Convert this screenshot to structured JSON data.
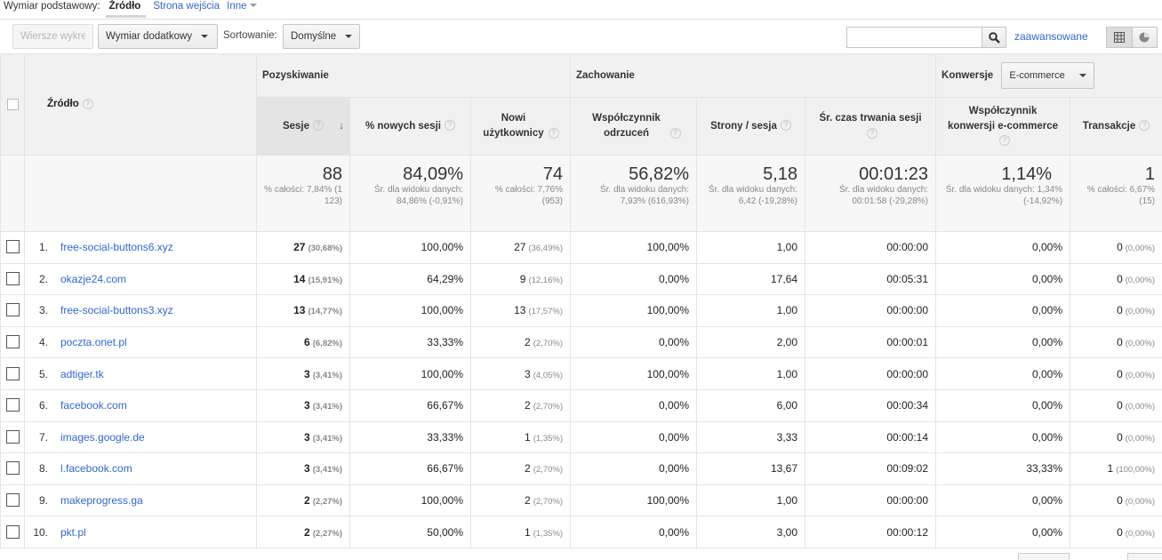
{
  "dimension_bar": {
    "label": "Wymiar podstawowy:",
    "active": "Źródło",
    "links": [
      "Strona wejścia",
      "Inne"
    ]
  },
  "toolbar": {
    "plot_rows": "Wiersze wykresu",
    "secondary_dimension": "Wymiar dodatkowy",
    "sort_label": "Sortowanie:",
    "sort_value": "Domyślne",
    "search_value": "",
    "advanced": "zaawansowane"
  },
  "table": {
    "source_header": "Źródło",
    "groups": {
      "acquisition": "Pozyskiwanie",
      "behavior": "Zachowanie",
      "conversions": "Konwersje",
      "conversions_select": "E-commerce"
    },
    "columns": {
      "sessions": "Sesje",
      "new_sessions": "% nowych sesji",
      "new_users": "Nowi użytkownicy",
      "bounce": "Współczynnik odrzuceń",
      "pages": "Strony / sesja",
      "duration": "Śr. czas trwania sesji",
      "conv_rate": "Współczynnik konwersji e-commerce",
      "transactions": "Transakcje"
    },
    "totals": {
      "sessions": {
        "value": "88",
        "sub": "% całości: 7,84% (1 123)"
      },
      "new_sessions": {
        "value": "84,09%",
        "sub": "Śr. dla widoku danych: 84,86% (-0,91%)"
      },
      "new_users": {
        "value": "74",
        "sub": "% całości: 7,76% (953)"
      },
      "bounce": {
        "value": "56,82%",
        "sub": "Śr. dla widoku danych: 7,93% (616,93%)"
      },
      "pages": {
        "value": "5,18",
        "sub": "Śr. dla widoku danych: 6,42 (-19,28%)"
      },
      "duration": {
        "value": "00:01:23",
        "sub": "Śr. dla widoku danych: 00:01:58 (-29,28%)"
      },
      "conv_rate": {
        "value": "1,14%",
        "sub": "Śr. dla widoku danych: 1,34% (-14,92%)"
      },
      "transactions": {
        "value": "1",
        "sub": "% całości: 6,67% (15)"
      }
    },
    "rows": [
      {
        "idx": "1.",
        "source": "free-social-buttons6.xyz",
        "sessions": "27",
        "sessions_pct": "(30,68%)",
        "new_sessions": "100,00%",
        "new_users": "27",
        "new_users_pct": "(36,49%)",
        "bounce": "100,00%",
        "pages": "1,00",
        "duration": "00:00:00",
        "conv_rate": "0,00%",
        "transactions": "0",
        "transactions_pct": "(0,00%)"
      },
      {
        "idx": "2.",
        "source": "okazje24.com",
        "sessions": "14",
        "sessions_pct": "(15,91%)",
        "new_sessions": "64,29%",
        "new_users": "9",
        "new_users_pct": "(12,16%)",
        "bounce": "0,00%",
        "pages": "17,64",
        "duration": "00:05:31",
        "conv_rate": "0,00%",
        "transactions": "0",
        "transactions_pct": "(0,00%)"
      },
      {
        "idx": "3.",
        "source": "free-social-buttons3.xyz",
        "sessions": "13",
        "sessions_pct": "(14,77%)",
        "new_sessions": "100,00%",
        "new_users": "13",
        "new_users_pct": "(17,57%)",
        "bounce": "100,00%",
        "pages": "1,00",
        "duration": "00:00:00",
        "conv_rate": "0,00%",
        "transactions": "0",
        "transactions_pct": "(0,00%)"
      },
      {
        "idx": "4.",
        "source": "poczta.onet.pl",
        "sessions": "6",
        "sessions_pct": "(6,82%)",
        "new_sessions": "33,33%",
        "new_users": "2",
        "new_users_pct": "(2,70%)",
        "bounce": "0,00%",
        "pages": "2,00",
        "duration": "00:00:01",
        "conv_rate": "0,00%",
        "transactions": "0",
        "transactions_pct": "(0,00%)"
      },
      {
        "idx": "5.",
        "source": "adtiger.tk",
        "sessions": "3",
        "sessions_pct": "(3,41%)",
        "new_sessions": "100,00%",
        "new_users": "3",
        "new_users_pct": "(4,05%)",
        "bounce": "100,00%",
        "pages": "1,00",
        "duration": "00:00:00",
        "conv_rate": "0,00%",
        "transactions": "0",
        "transactions_pct": "(0,00%)"
      },
      {
        "idx": "6.",
        "source": "facebook.com",
        "sessions": "3",
        "sessions_pct": "(3,41%)",
        "new_sessions": "66,67%",
        "new_users": "2",
        "new_users_pct": "(2,70%)",
        "bounce": "0,00%",
        "pages": "6,00",
        "duration": "00:00:34",
        "conv_rate": "0,00%",
        "transactions": "0",
        "transactions_pct": "(0,00%)"
      },
      {
        "idx": "7.",
        "source": "images.google.de",
        "sessions": "3",
        "sessions_pct": "(3,41%)",
        "new_sessions": "33,33%",
        "new_users": "1",
        "new_users_pct": "(1,35%)",
        "bounce": "0,00%",
        "pages": "3,33",
        "duration": "00:00:14",
        "conv_rate": "0,00%",
        "transactions": "0",
        "transactions_pct": "(0,00%)"
      },
      {
        "idx": "8.",
        "source": "l.facebook.com",
        "sessions": "3",
        "sessions_pct": "(3,41%)",
        "new_sessions": "66,67%",
        "new_users": "2",
        "new_users_pct": "(2,70%)",
        "bounce": "0,00%",
        "pages": "13,67",
        "duration": "00:09:02",
        "conv_rate": "33,33%",
        "transactions": "1",
        "transactions_pct": "(100,00%)"
      },
      {
        "idx": "9.",
        "source": "makeprogress.ga",
        "sessions": "2",
        "sessions_pct": "(2,27%)",
        "new_sessions": "100,00%",
        "new_users": "2",
        "new_users_pct": "(2,70%)",
        "bounce": "100,00%",
        "pages": "1,00",
        "duration": "00:00:00",
        "conv_rate": "0,00%",
        "transactions": "0",
        "transactions_pct": "(0,00%)"
      },
      {
        "idx": "10.",
        "source": "pkt.pl",
        "sessions": "2",
        "sessions_pct": "(2,27%)",
        "new_sessions": "50,00%",
        "new_users": "1",
        "new_users_pct": "(1,35%)",
        "bounce": "0,00%",
        "pages": "3,00",
        "duration": "00:00:12",
        "conv_rate": "0,00%",
        "transactions": "0",
        "transactions_pct": "(0,00%)"
      }
    ]
  }
}
